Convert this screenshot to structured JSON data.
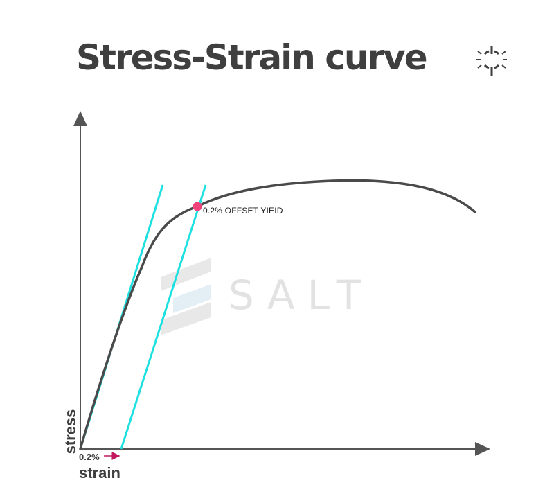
{
  "title": "Stress-Strain curve",
  "axes": {
    "y_label": "stress",
    "x_label": "strain"
  },
  "annotations": {
    "offset": "0.2%",
    "yield_point": "0.2% OFFSET YIEID"
  },
  "watermark": {
    "text": "SALT"
  },
  "colors": {
    "curve": "#4a4a4a",
    "tangent_lines": "#1ee0e0",
    "yield_marker": "#f0437c",
    "offset_arrow": "#c2185b",
    "axes": "#555555",
    "title": "#3f3f3f"
  },
  "icons": {
    "title_icon": "crosshair-icon",
    "watermark_logo": "salt-logo"
  }
}
